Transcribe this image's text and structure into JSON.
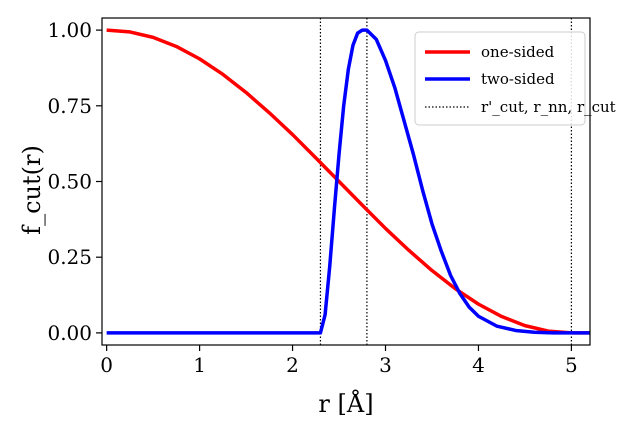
{
  "chart_data": {
    "type": "line",
    "title": "",
    "xlabel": "r [Å]",
    "ylabel": "f_cut(r)",
    "xlim": [
      -0.05,
      5.2
    ],
    "ylim": [
      -0.04,
      1.04
    ],
    "x_ticks": [
      0,
      1,
      2,
      3,
      4,
      5
    ],
    "x_tick_labels": [
      "0",
      "1",
      "2",
      "3",
      "4",
      "5"
    ],
    "y_ticks": [
      0.0,
      0.25,
      0.5,
      0.75,
      1.0
    ],
    "y_tick_labels": [
      "0.00",
      "0.25",
      "0.50",
      "0.75",
      "1.00"
    ],
    "grid": false,
    "legend_position": "top-right",
    "series": [
      {
        "name": "one-sided",
        "color": "#ff0000",
        "x": [
          0,
          0.25,
          0.5,
          0.75,
          1.0,
          1.25,
          1.5,
          1.75,
          2.0,
          2.25,
          2.5,
          2.75,
          3.0,
          3.25,
          3.5,
          3.75,
          4.0,
          4.25,
          4.5,
          4.75,
          5.0,
          5.2
        ],
        "y": [
          1.0,
          0.994,
          0.976,
          0.946,
          0.905,
          0.854,
          0.794,
          0.727,
          0.655,
          0.578,
          0.5,
          0.422,
          0.345,
          0.273,
          0.206,
          0.146,
          0.095,
          0.054,
          0.024,
          0.006,
          0.0,
          0.0
        ]
      },
      {
        "name": "two-sided",
        "color": "#0000ff",
        "x": [
          0,
          2.3,
          2.35,
          2.4,
          2.45,
          2.5,
          2.55,
          2.6,
          2.65,
          2.7,
          2.75,
          2.8,
          2.9,
          3.0,
          3.1,
          3.2,
          3.3,
          3.4,
          3.5,
          3.6,
          3.7,
          3.8,
          3.9,
          4.0,
          4.2,
          4.4,
          4.6,
          4.8,
          5.0,
          5.2
        ],
        "y": [
          0.0,
          0.0,
          0.06,
          0.22,
          0.41,
          0.59,
          0.75,
          0.87,
          0.95,
          0.99,
          1.0,
          1.0,
          0.97,
          0.9,
          0.81,
          0.7,
          0.59,
          0.47,
          0.36,
          0.27,
          0.19,
          0.13,
          0.085,
          0.055,
          0.022,
          0.008,
          0.002,
          0.0,
          0.0,
          0.0
        ]
      }
    ],
    "vertical_lines": {
      "name": "r'_cut, r_nn, r_cut",
      "color": "#000000",
      "style": "dotted",
      "x": [
        2.3,
        2.8,
        5.0
      ]
    }
  }
}
